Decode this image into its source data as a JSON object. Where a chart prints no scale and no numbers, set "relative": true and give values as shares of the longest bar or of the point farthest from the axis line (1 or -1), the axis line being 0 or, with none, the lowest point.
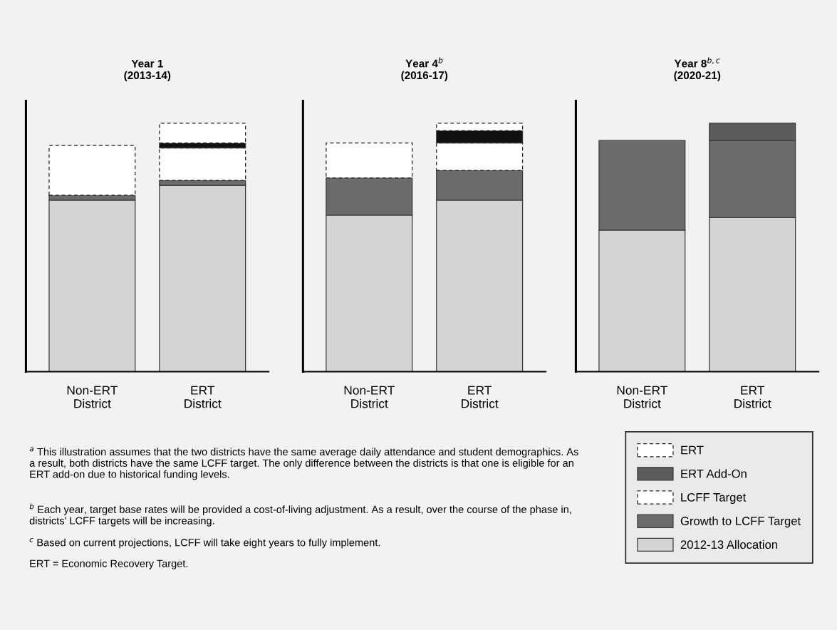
{
  "chart_data": [
    {
      "type": "bar",
      "title": "Year 1\n(2013-14)",
      "categories": [
        "Non-ERT\nDistrict",
        "ERT\nDistrict"
      ],
      "stacked": true,
      "relative": true,
      "legend": false,
      "series": [
        {
          "color": "#d4d4d4",
          "values": [
            0.69,
            0.75
          ]
        },
        {
          "color": "#6b6b6b",
          "values": [
            0.02,
            0.02
          ]
        },
        {
          "color": "#ffffff",
          "line_style": "dashed",
          "values": [
            0.2,
            0.13
          ]
        },
        {
          "color": "#111111",
          "values": [
            null,
            0.02
          ]
        },
        {
          "color": "#ffffff",
          "line_style": "dashed",
          "values": [
            null,
            0.08
          ]
        }
      ],
      "annotations": [
        "$^{a}$ This illustration assumes that the two districts have the same average daily attendance and student demographics. As a result, both districts have the same LCFF target. The only difference between the districts is that one is eligible for an ERT add-on due to historical funding levels.",
        "$^{b}$ Each year, target base rates will be provided a cost-of-living adjustment. As a result, over the course of the phase in, districts' LCFF targets will be increasing.",
        "$^{c}$ Based on current projections, LCFF will take eight years to fully implement.",
        "ERT = Economic Recovery Target."
      ]
    },
    {
      "type": "bar",
      "title": "Year 4$^{b}$\n(2016-17)",
      "categories": [
        "Non-ERT\nDistrict",
        "ERT\nDistrict"
      ],
      "stacked": true,
      "relative": true,
      "legend": false,
      "series": [
        {
          "color": "#d4d4d4",
          "values": [
            0.63,
            0.69
          ]
        },
        {
          "color": "#6b6b6b",
          "values": [
            0.15,
            0.12
          ]
        },
        {
          "color": "#ffffff",
          "line_style": "dashed",
          "values": [
            0.14,
            0.11
          ]
        },
        {
          "color": "#111111",
          "values": [
            null,
            0.05
          ]
        },
        {
          "color": "#ffffff",
          "line_style": "dashed",
          "values": [
            null,
            0.03
          ]
        }
      ]
    },
    {
      "type": "bar",
      "title": "Year 8$^{b,c}$\n(2020-21)",
      "categories": [
        "Non-ERT\nDistrict",
        "ERT\nDistrict"
      ],
      "stacked": true,
      "relative": true,
      "legend": "bottom right",
      "series": [
        {
          "name": "2012-13 Allocation",
          "color": "#d4d4d4",
          "values": [
            0.57,
            0.62
          ]
        },
        {
          "name": "Growth to LCFF Target",
          "color": "#6b6b6b",
          "values": [
            0.36,
            0.31
          ]
        },
        {
          "name": "LCFF Target",
          "color": "#ffffff",
          "line_style": "dashed",
          "values": [
            null,
            null
          ]
        },
        {
          "name": "ERT Add-On",
          "color": "#5c5c5c",
          "values": [
            null,
            0.07
          ]
        },
        {
          "name": "ERT",
          "color": "#ffffff",
          "line_style": "dashed",
          "values": [
            null,
            null
          ]
        }
      ]
    }
  ]
}
